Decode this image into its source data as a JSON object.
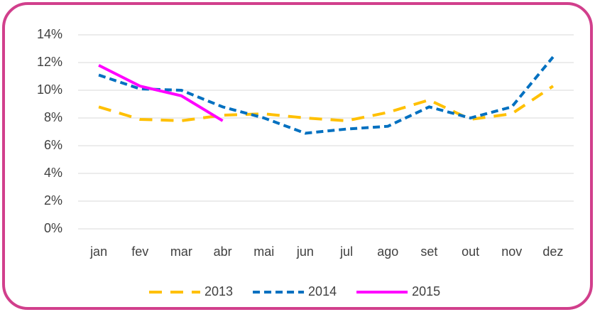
{
  "chart_data": {
    "type": "line",
    "categories": [
      "jan",
      "fev",
      "mar",
      "abr",
      "mai",
      "jun",
      "jul",
      "ago",
      "set",
      "out",
      "nov",
      "dez"
    ],
    "series": [
      {
        "name": "2013",
        "color": "#ffc000",
        "line_style": "long-dash",
        "values": [
          8.8,
          7.9,
          7.8,
          8.2,
          8.3,
          8.0,
          7.8,
          8.4,
          9.3,
          7.9,
          8.3,
          10.3
        ]
      },
      {
        "name": "2014",
        "color": "#0070c0",
        "line_style": "dash",
        "values": [
          11.1,
          10.1,
          10.0,
          8.8,
          8.0,
          6.9,
          7.2,
          7.4,
          8.8,
          8.0,
          8.8,
          12.4
        ]
      },
      {
        "name": "2015",
        "color": "#ff00ff",
        "line_style": "solid",
        "values": [
          11.8,
          10.3,
          9.6,
          7.8,
          null,
          null,
          null,
          null,
          null,
          null,
          null,
          null
        ]
      }
    ],
    "ylim": [
      0,
      14
    ],
    "yticks": [
      {
        "value": 0,
        "label": "0%"
      },
      {
        "value": 2,
        "label": "2%"
      },
      {
        "value": 4,
        "label": "4%"
      },
      {
        "value": 6,
        "label": "6%"
      },
      {
        "value": 8,
        "label": "8%"
      },
      {
        "value": 10,
        "label": "10%"
      },
      {
        "value": 12,
        "label": "12%"
      },
      {
        "value": 14,
        "label": "14%"
      }
    ],
    "grid": true,
    "legend": "bottom"
  }
}
